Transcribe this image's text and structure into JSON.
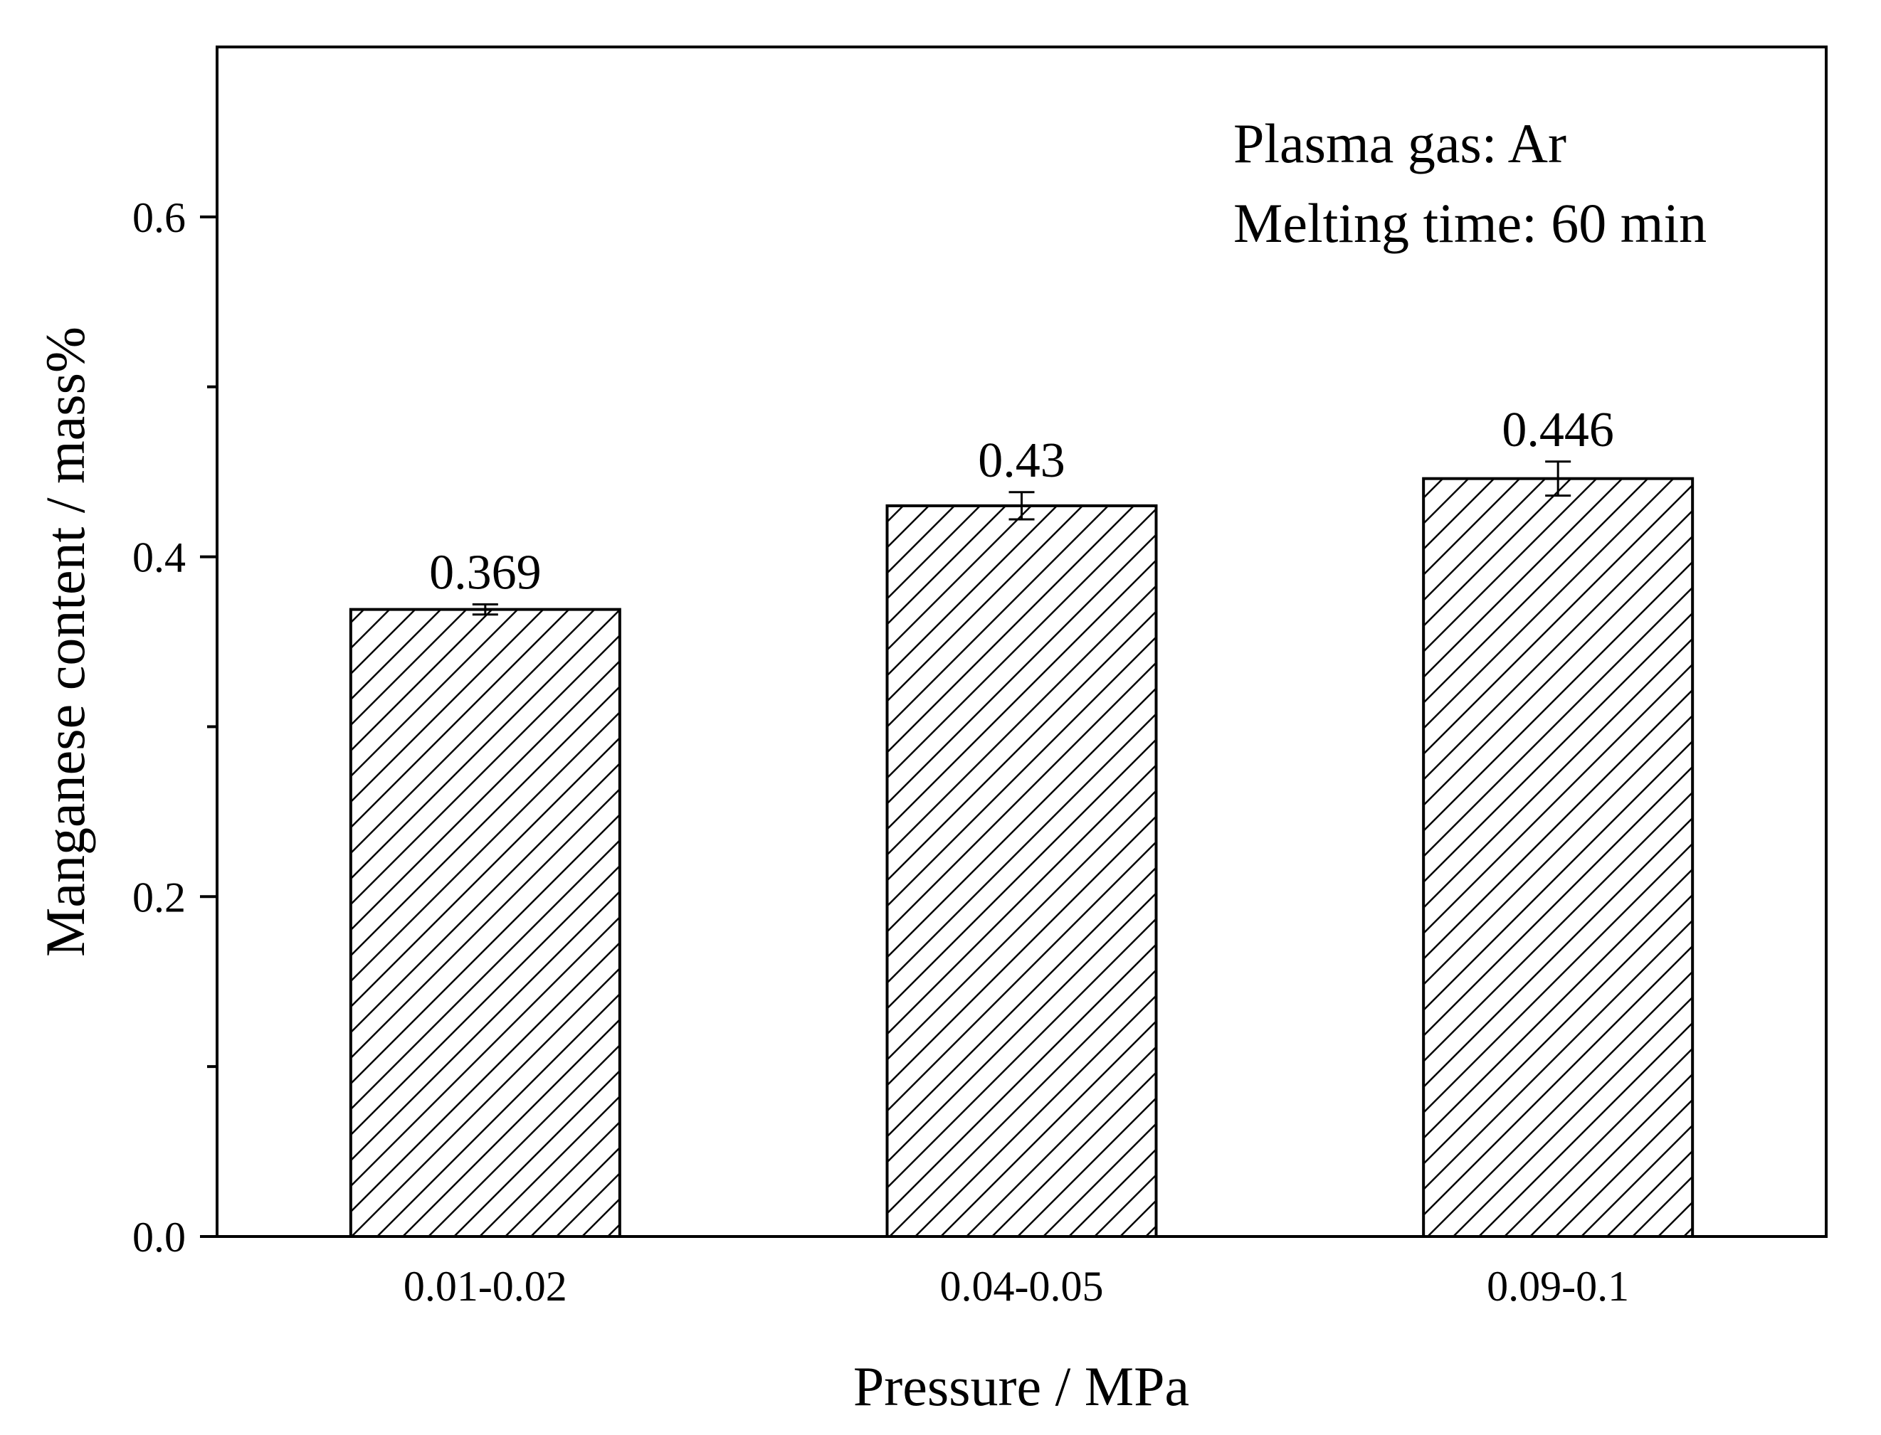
{
  "chart_data": {
    "type": "bar",
    "title": "",
    "xlabel": "Pressure / MPa",
    "ylabel": "Manganese content / mass%",
    "categories": [
      "0.01-0.02",
      "0.04-0.05",
      "0.09-0.1"
    ],
    "values": [
      0.369,
      0.43,
      0.446
    ],
    "errors": [
      0.003,
      0.008,
      0.01
    ],
    "data_labels": [
      "0.369",
      "0.43",
      "0.446"
    ],
    "ylim": [
      0,
      0.7
    ],
    "y_major_ticks": [
      0.0,
      0.2,
      0.4,
      0.6
    ],
    "y_tick_labels": [
      "0.0",
      "0.2",
      "0.4",
      "0.6"
    ],
    "y_minor_ticks": [
      0.1,
      0.3,
      0.5
    ],
    "bar_fill": "diagonal hatch",
    "colors": {
      "stroke": "#000000",
      "background": "#ffffff"
    },
    "grid": false,
    "legend": "none",
    "annotations": [
      "Plasma gas: Ar",
      "Melting time: 60 min"
    ]
  }
}
